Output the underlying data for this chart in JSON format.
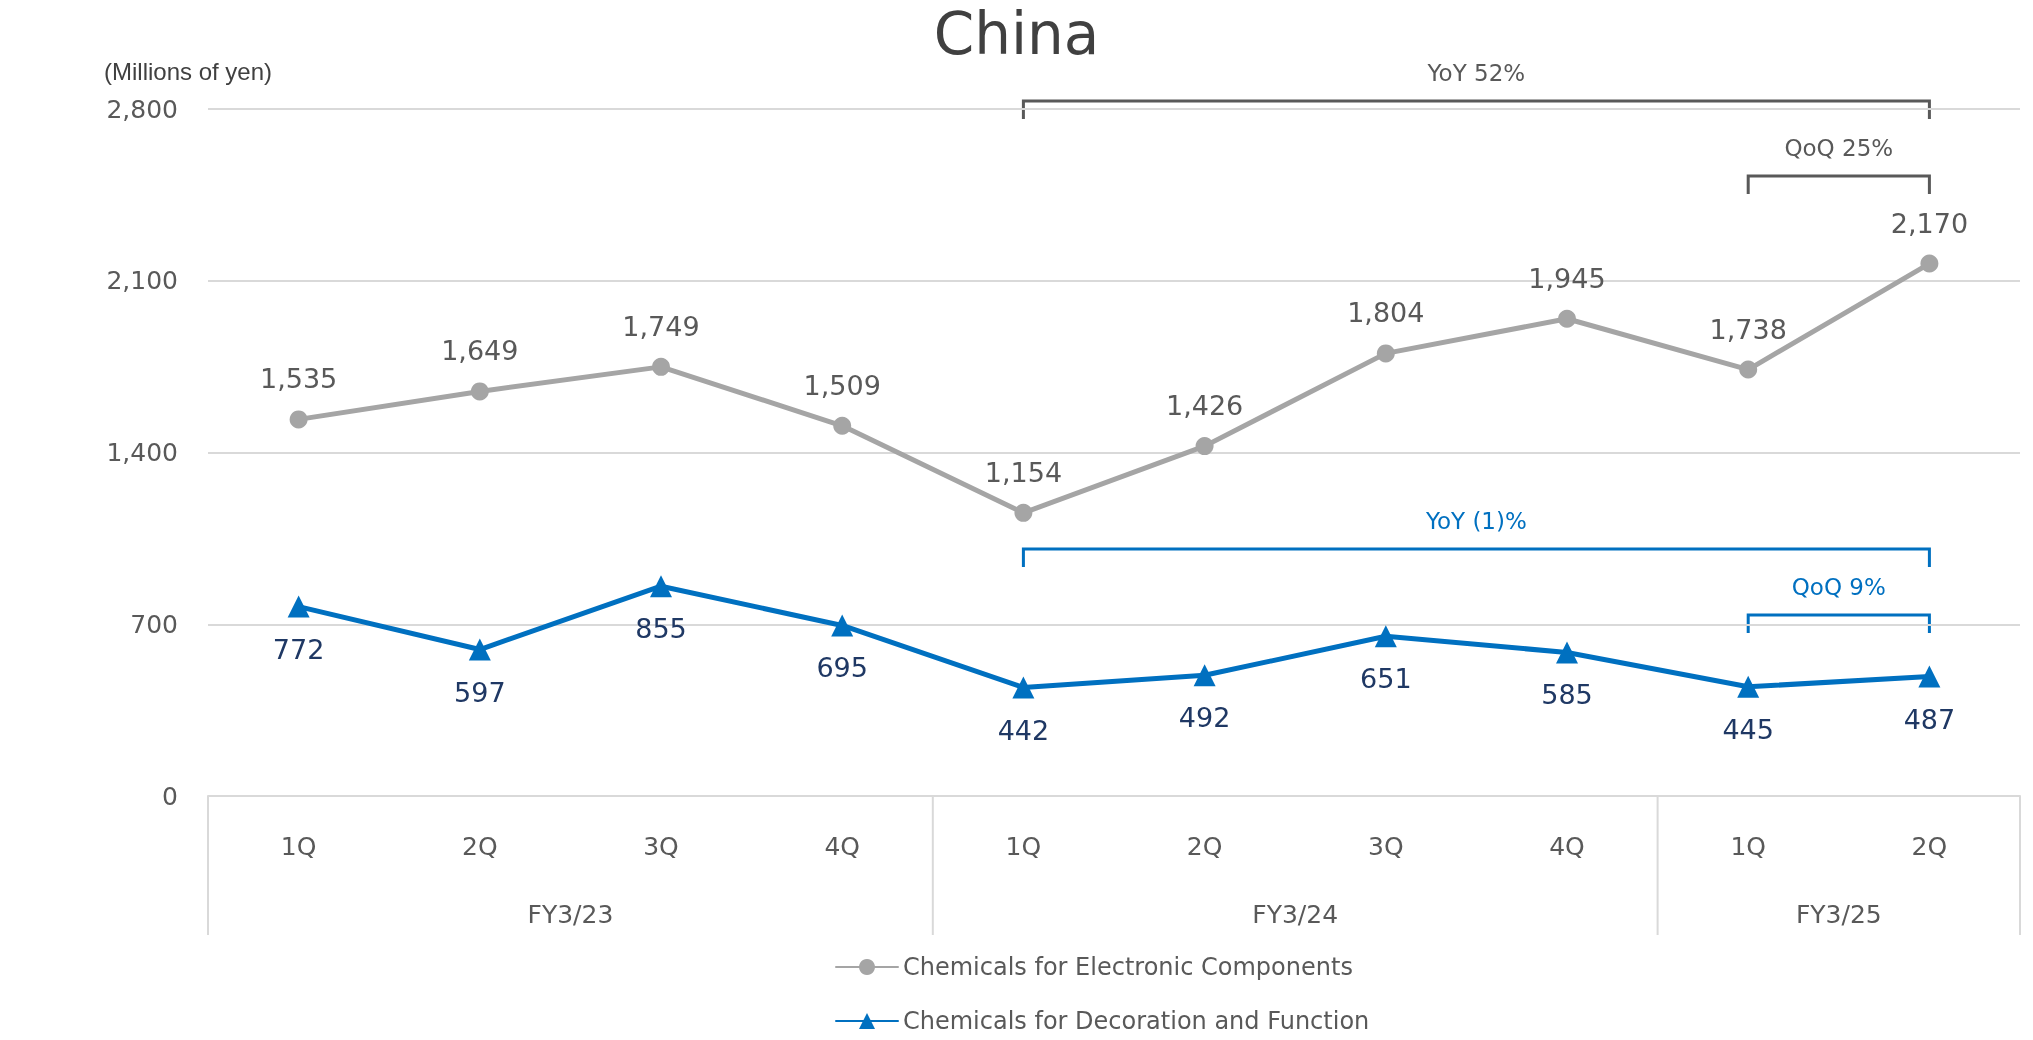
{
  "chart_data": {
    "type": "line",
    "title": "China",
    "ylabel": "(Millions of yen)",
    "categories": [
      "1Q",
      "2Q",
      "3Q",
      "4Q",
      "1Q",
      "2Q",
      "3Q",
      "4Q",
      "1Q",
      "2Q"
    ],
    "series": [
      {
        "name": "Chemicals for Electronic Components",
        "color": "#a5a5a5",
        "marker": "circle",
        "values": [
          1535,
          1649,
          1749,
          1509,
          1154,
          1426,
          1804,
          1945,
          1738,
          2170
        ],
        "value_labels": [
          "1,535",
          "1,649",
          "1,749",
          "1,509",
          "1,154",
          "1,426",
          "1,804",
          "1,945",
          "1,738",
          "2,170"
        ]
      },
      {
        "name": "Chemicals for Decoration and Function",
        "color": "#0070c0",
        "marker": "triangle",
        "values": [
          772,
          597,
          855,
          695,
          442,
          492,
          651,
          585,
          445,
          487
        ],
        "value_labels": [
          "772",
          "597",
          "855",
          "695",
          "442",
          "492",
          "651",
          "585",
          "445",
          "487"
        ]
      }
    ],
    "ylim": [
      0,
      2800
    ],
    "yticks": [
      0,
      700,
      {
        "value": 1400,
        "label": "1,400"
      },
      {
        "value": 2100,
        "label": "2,100"
      },
      {
        "value": 2800,
        "label": "2,800"
      }
    ],
    "grid": "y",
    "legend": "bottom",
    "line_style": "solid",
    "annotations": [
      "FY3/23",
      "FY3/24",
      "FY3/25",
      "YoY 52%",
      "QoQ 25%",
      "YoY (1)%",
      "QoQ 9%"
    ]
  }
}
